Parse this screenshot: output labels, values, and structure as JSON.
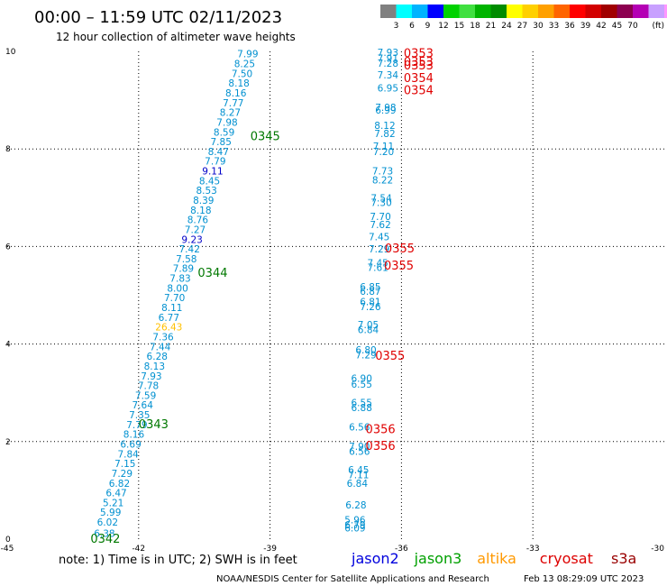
{
  "chart_data": {
    "type": "scatter",
    "title": "00:00 – 11:59 UTC 02/11/2023",
    "subtitle": "12 hour collection of altimeter wave heights",
    "xlim": [
      -45,
      -30
    ],
    "ylim": [
      0,
      10
    ],
    "x_ticks": [
      -45,
      -42,
      -39,
      -36,
      -33,
      -30
    ],
    "y_ticks": [
      0,
      2,
      4,
      6,
      8,
      10
    ],
    "x_tick_labels": [
      "-45",
      "-42",
      "-39",
      "-36",
      "-33",
      "-30"
    ],
    "y_tick_labels": [
      "0",
      "2",
      "4",
      "6",
      "8",
      "10"
    ],
    "grid": true,
    "color_scale": {
      "colors": [
        "#808080",
        "#00ffff",
        "#00b4ff",
        "#0000ff",
        "#00d200",
        "#40e040",
        "#00b400",
        "#008c00",
        "#ffff00",
        "#ffd000",
        "#ffa000",
        "#ff6400",
        "#ff0000",
        "#d20000",
        "#a00000",
        "#8c0050",
        "#b400b4",
        "#c8a0ff",
        "#ff96ff",
        "#000000"
      ],
      "labels": [
        "",
        "3",
        "6",
        "9",
        "12",
        "15",
        "18",
        "21",
        "24",
        "27",
        "30",
        "33",
        "36",
        "39",
        "42",
        "45",
        "70",
        "(ft)"
      ]
    },
    "legend": [
      {
        "name": "jason2",
        "color": "#0000dd"
      },
      {
        "name": "jason3",
        "color": "#00a000"
      },
      {
        "name": "altika",
        "color": "#ff9900"
      },
      {
        "name": "cryosat",
        "color": "#dd0000"
      },
      {
        "name": "s3a",
        "color": "#990000"
      }
    ],
    "series": [
      {
        "name": "jason3",
        "label_color": "#0090d0",
        "points": [
          {
            "x": -39.75,
            "y": 9.95,
            "v": "7.99"
          },
          {
            "x": -39.82,
            "y": 9.75,
            "v": "8.25"
          },
          {
            "x": -39.88,
            "y": 9.55,
            "v": "7.50"
          },
          {
            "x": -39.95,
            "y": 9.35,
            "v": "8.18"
          },
          {
            "x": -40.02,
            "y": 9.15,
            "v": "8.16"
          },
          {
            "x": -40.08,
            "y": 8.95,
            "v": "7.77"
          },
          {
            "x": -40.15,
            "y": 8.75,
            "v": "8.27"
          },
          {
            "x": -40.22,
            "y": 8.55,
            "v": "7.98"
          },
          {
            "x": -40.29,
            "y": 8.35,
            "v": "8.59"
          },
          {
            "x": -40.36,
            "y": 8.15,
            "v": "7.85"
          },
          {
            "x": -40.42,
            "y": 7.95,
            "v": "8.47"
          },
          {
            "x": -40.49,
            "y": 7.75,
            "v": "7.79"
          },
          {
            "x": -40.55,
            "y": 7.55,
            "v": "9.11"
          },
          {
            "x": -40.62,
            "y": 7.35,
            "v": "8.45"
          },
          {
            "x": -40.69,
            "y": 7.15,
            "v": "8.53"
          },
          {
            "x": -40.76,
            "y": 6.95,
            "v": "8.39"
          },
          {
            "x": -40.82,
            "y": 6.75,
            "v": "8.18"
          },
          {
            "x": -40.89,
            "y": 6.55,
            "v": "8.76"
          },
          {
            "x": -40.95,
            "y": 6.35,
            "v": "7.27"
          },
          {
            "x": -41.02,
            "y": 6.15,
            "v": "9.23"
          },
          {
            "x": -41.08,
            "y": 5.95,
            "v": "7.42"
          },
          {
            "x": -41.15,
            "y": 5.75,
            "v": "7.58"
          },
          {
            "x": -41.22,
            "y": 5.55,
            "v": "7.89"
          },
          {
            "x": -41.29,
            "y": 5.35,
            "v": "7.83"
          },
          {
            "x": -41.35,
            "y": 5.15,
            "v": "8.00"
          },
          {
            "x": -41.42,
            "y": 4.95,
            "v": "7.70"
          },
          {
            "x": -41.48,
            "y": 4.75,
            "v": "8.11"
          },
          {
            "x": -41.55,
            "y": 4.55,
            "v": "6.77"
          },
          {
            "x": -41.62,
            "y": 4.35,
            "v": "26.43"
          },
          {
            "x": -41.68,
            "y": 4.15,
            "v": "7.36"
          },
          {
            "x": -41.75,
            "y": 3.95,
            "v": "7.44"
          },
          {
            "x": -41.82,
            "y": 3.75,
            "v": "6.28"
          },
          {
            "x": -41.88,
            "y": 3.55,
            "v": "8.13"
          },
          {
            "x": -41.95,
            "y": 3.35,
            "v": "7.93"
          },
          {
            "x": -42.02,
            "y": 3.15,
            "v": "7.78"
          },
          {
            "x": -42.08,
            "y": 2.95,
            "v": "7.59"
          },
          {
            "x": -42.15,
            "y": 2.75,
            "v": "7.64"
          },
          {
            "x": -42.22,
            "y": 2.55,
            "v": "7.35"
          },
          {
            "x": -42.28,
            "y": 2.35,
            "v": "7.79"
          },
          {
            "x": -42.35,
            "y": 2.15,
            "v": "8.16"
          },
          {
            "x": -42.42,
            "y": 1.95,
            "v": "6.69"
          },
          {
            "x": -42.48,
            "y": 1.75,
            "v": "7.84"
          },
          {
            "x": -42.55,
            "y": 1.55,
            "v": "7.15"
          },
          {
            "x": -42.62,
            "y": 1.35,
            "v": "7.29"
          },
          {
            "x": -42.68,
            "y": 1.15,
            "v": "6.82"
          },
          {
            "x": -42.75,
            "y": 0.95,
            "v": "6.47"
          },
          {
            "x": -42.82,
            "y": 0.75,
            "v": "5.21"
          },
          {
            "x": -42.88,
            "y": 0.55,
            "v": "5.99"
          },
          {
            "x": -42.95,
            "y": 0.35,
            "v": "6.02"
          },
          {
            "x": -43.02,
            "y": 0.12,
            "v": "6.38"
          }
        ]
      },
      {
        "name": "cryosat",
        "label_color": "#0090d0",
        "points": [
          {
            "x": -36.55,
            "y": 9.98,
            "v": "7.93"
          },
          {
            "x": -36.55,
            "y": 9.86,
            "v": "7.91"
          },
          {
            "x": -36.55,
            "y": 9.76,
            "v": "7.28"
          },
          {
            "x": -36.55,
            "y": 9.52,
            "v": "7.34"
          },
          {
            "x": -36.55,
            "y": 9.25,
            "v": "6.95"
          },
          {
            "x": -36.6,
            "y": 8.85,
            "v": "7.98"
          },
          {
            "x": -36.6,
            "y": 8.8,
            "v": "6.99"
          },
          {
            "x": -36.62,
            "y": 8.48,
            "v": "8.12"
          },
          {
            "x": -36.62,
            "y": 8.32,
            "v": "7.82"
          },
          {
            "x": -36.65,
            "y": 8.06,
            "v": "7.11"
          },
          {
            "x": -36.65,
            "y": 7.95,
            "v": "7.20"
          },
          {
            "x": -36.67,
            "y": 7.55,
            "v": "7.73"
          },
          {
            "x": -36.67,
            "y": 7.37,
            "v": "8.22"
          },
          {
            "x": -36.7,
            "y": 7.0,
            "v": "7.54"
          },
          {
            "x": -36.7,
            "y": 6.9,
            "v": "7.30"
          },
          {
            "x": -36.72,
            "y": 6.62,
            "v": "7.70"
          },
          {
            "x": -36.72,
            "y": 6.45,
            "v": "7.62"
          },
          {
            "x": -36.75,
            "y": 6.2,
            "v": "7.45"
          },
          {
            "x": -36.75,
            "y": 5.95,
            "v": "7.29"
          },
          {
            "x": -36.78,
            "y": 5.67,
            "v": "7.45"
          },
          {
            "x": -36.78,
            "y": 5.57,
            "v": "7.61"
          },
          {
            "x": -36.95,
            "y": 5.18,
            "v": "6.85"
          },
          {
            "x": -36.95,
            "y": 5.08,
            "v": "6.87"
          },
          {
            "x": -36.95,
            "y": 4.87,
            "v": "6.81"
          },
          {
            "x": -36.95,
            "y": 4.77,
            "v": "7.26"
          },
          {
            "x": -37.0,
            "y": 4.4,
            "v": "7.05"
          },
          {
            "x": -37.0,
            "y": 4.3,
            "v": "6.84"
          },
          {
            "x": -37.05,
            "y": 3.88,
            "v": "6.80"
          },
          {
            "x": -37.05,
            "y": 3.78,
            "v": "7.29"
          },
          {
            "x": -37.15,
            "y": 3.3,
            "v": "6.90"
          },
          {
            "x": -37.15,
            "y": 3.18,
            "v": "6.55"
          },
          {
            "x": -37.15,
            "y": 2.8,
            "v": "6.55"
          },
          {
            "x": -37.15,
            "y": 2.7,
            "v": "6.88"
          },
          {
            "x": -37.2,
            "y": 2.3,
            "v": "6.56"
          },
          {
            "x": -37.2,
            "y": 1.9,
            "v": "7.90"
          },
          {
            "x": -37.2,
            "y": 1.8,
            "v": "6.56"
          },
          {
            "x": -37.22,
            "y": 1.42,
            "v": "6.45"
          },
          {
            "x": -37.22,
            "y": 1.32,
            "v": "7.11"
          },
          {
            "x": -37.25,
            "y": 1.15,
            "v": "6.84"
          },
          {
            "x": -37.28,
            "y": 0.7,
            "v": "6.28"
          },
          {
            "x": -37.3,
            "y": 0.4,
            "v": "5.96"
          },
          {
            "x": -37.3,
            "y": 0.3,
            "v": "6.79"
          },
          {
            "x": -37.3,
            "y": 0.23,
            "v": "6.09"
          }
        ]
      }
    ],
    "annotations": [
      {
        "x": -43.1,
        "y": 0.0,
        "text": "0342",
        "color": "#007800"
      },
      {
        "x": -42.0,
        "y": 2.35,
        "text": "0343",
        "color": "#007800"
      },
      {
        "x": -40.65,
        "y": 5.45,
        "text": "0344",
        "color": "#007800"
      },
      {
        "x": -39.45,
        "y": 8.25,
        "text": "0345",
        "color": "#007800"
      },
      {
        "x": -35.95,
        "y": 9.95,
        "text": "0353",
        "color": "#e00000"
      },
      {
        "x": -35.95,
        "y": 9.78,
        "text": "0353",
        "color": "#e00000"
      },
      {
        "x": -35.95,
        "y": 9.7,
        "text": "0353",
        "color": "#e00000"
      },
      {
        "x": -35.95,
        "y": 9.45,
        "text": "0354",
        "color": "#e00000"
      },
      {
        "x": -35.95,
        "y": 9.2,
        "text": "0354",
        "color": "#e00000"
      },
      {
        "x": -36.38,
        "y": 5.95,
        "text": "0355",
        "color": "#e00000"
      },
      {
        "x": -36.4,
        "y": 5.6,
        "text": "0355",
        "color": "#e00000"
      },
      {
        "x": -36.6,
        "y": 3.75,
        "text": "0355",
        "color": "#e00000"
      },
      {
        "x": -36.82,
        "y": 2.25,
        "text": "0356",
        "color": "#e00000"
      },
      {
        "x": -36.82,
        "y": 1.9,
        "text": "0356",
        "color": "#e00000"
      }
    ]
  },
  "footer": {
    "note": "note: 1) Time is in UTC; 2) SWH is in feet",
    "credit": "NOAA/NESDIS Center for Satellite Applications and Research",
    "generated": "Feb 13 08:29:09 UTC 2023"
  }
}
